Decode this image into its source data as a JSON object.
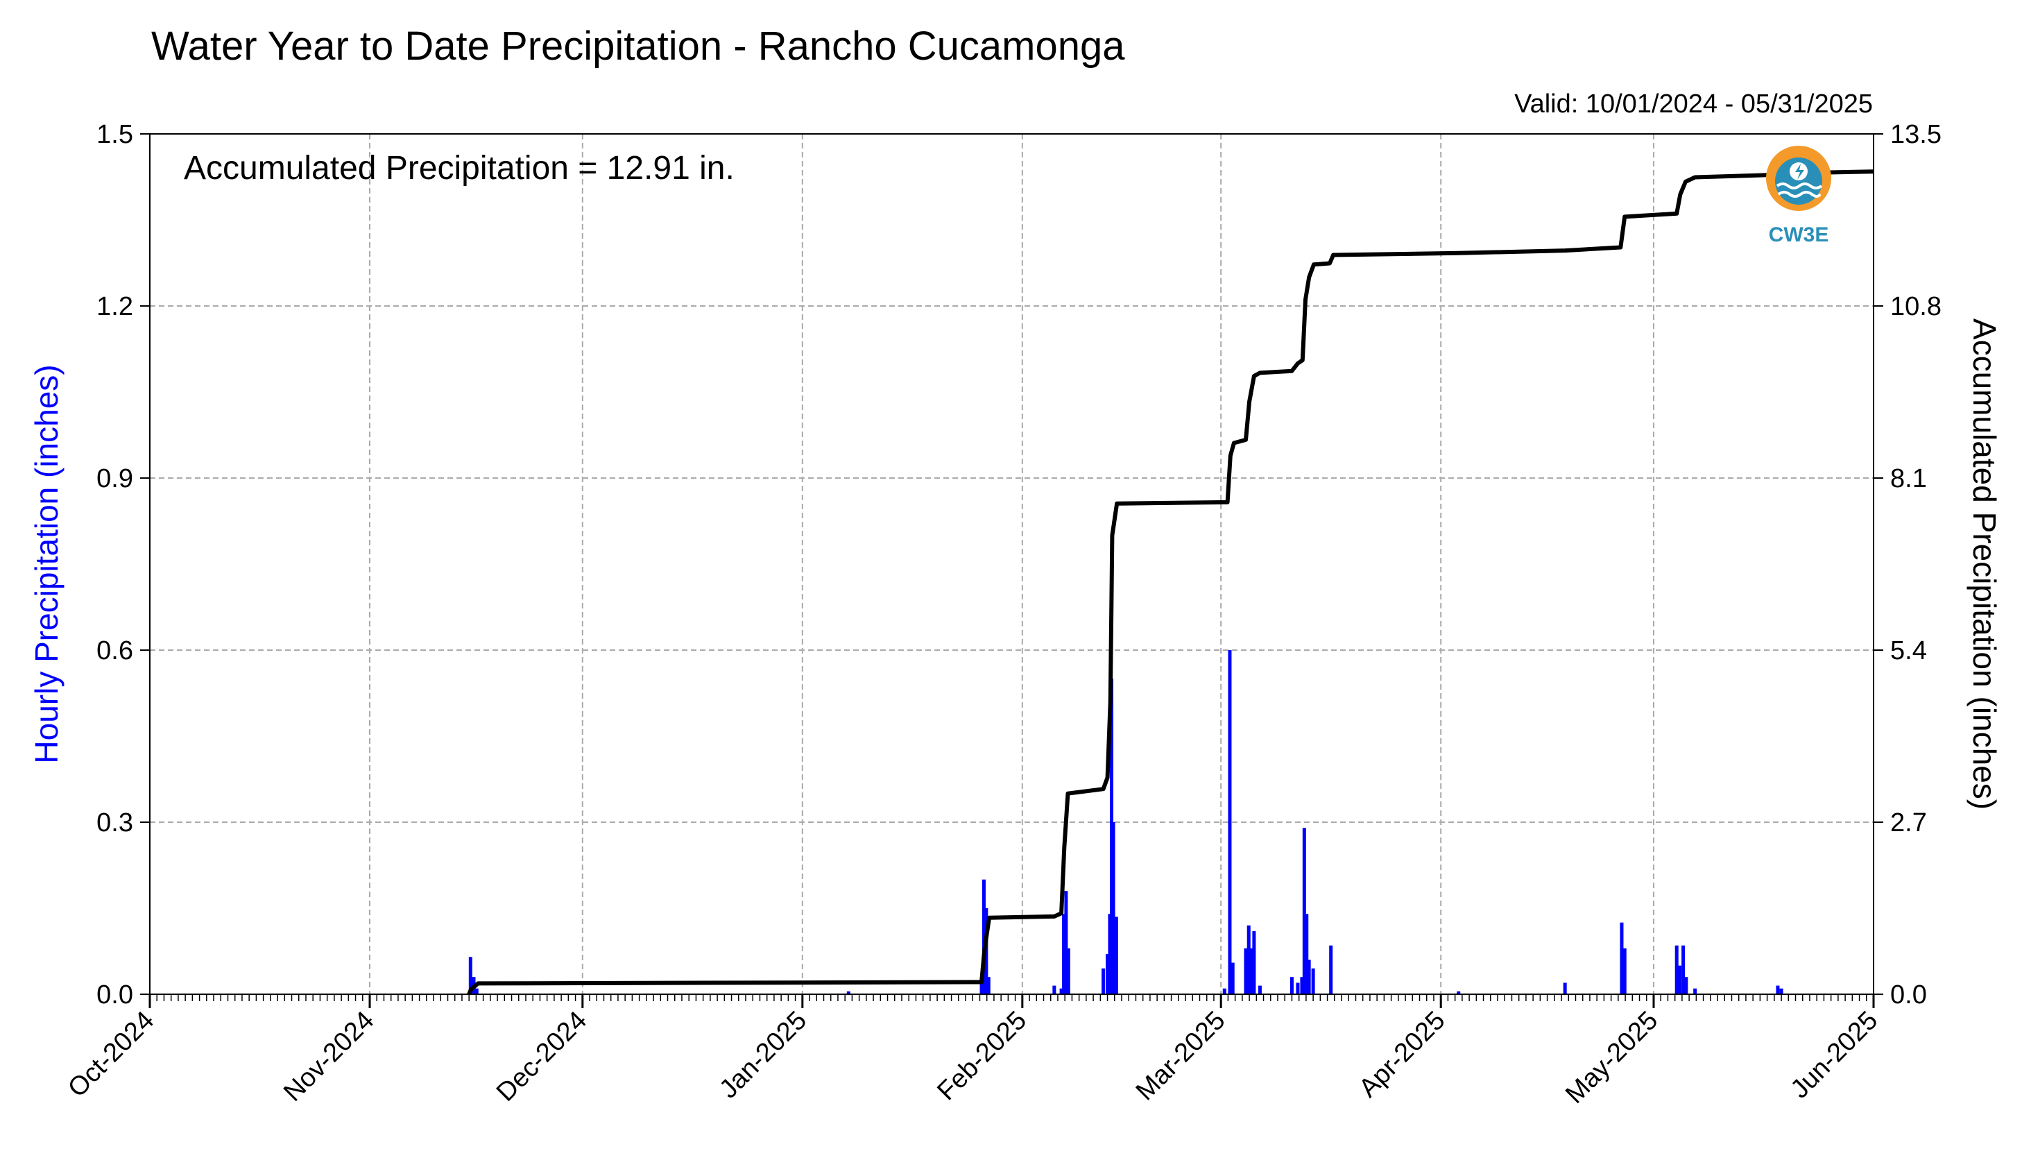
{
  "chart_data": {
    "type": "bar+line",
    "title": "Water Year to Date Precipitation - Rancho Cucamonga",
    "valid_text": "Valid: 10/01/2024 - 05/31/2025",
    "annotation": "Accumulated Precipitation = 12.91 in.",
    "logo_text": "CW3E",
    "ylabel_left": "Hourly Precipitation (inches)",
    "ylabel_right": "Accumulated Precipitation (inches)",
    "x_range": [
      "2024-10-01",
      "2025-06-01"
    ],
    "ylim_left": [
      0,
      1.5
    ],
    "ylim_right": [
      0,
      13.5
    ],
    "yticks_left": [
      "0.0",
      "0.3",
      "0.6",
      "0.9",
      "1.2",
      "1.5"
    ],
    "yticks_right": [
      "0.0",
      "2.7",
      "5.4",
      "8.1",
      "10.8",
      "13.5"
    ],
    "xticks": [
      {
        "label": "Oct-2024",
        "date": "2024-10-01"
      },
      {
        "label": "Nov-2024",
        "date": "2024-11-01"
      },
      {
        "label": "Dec-2024",
        "date": "2024-12-01"
      },
      {
        "label": "Jan-2025",
        "date": "2025-01-01"
      },
      {
        "label": "Feb-2025",
        "date": "2025-02-01"
      },
      {
        "label": "Mar-2025",
        "date": "2025-03-01"
      },
      {
        "label": "Apr-2025",
        "date": "2025-04-01"
      },
      {
        "label": "May-2025",
        "date": "2025-05-01"
      },
      {
        "label": "Jun-2025",
        "date": "2025-06-01"
      }
    ],
    "grid": true,
    "colors": {
      "hourly": "#0000ff",
      "accumulated": "#000000",
      "grid": "#aaaaaa"
    },
    "hourly_series": [
      {
        "date": "2024-11-15 05:00",
        "value": 0.065
      },
      {
        "date": "2024-11-15 16:00",
        "value": 0.03
      },
      {
        "date": "2024-11-16 02:00",
        "value": 0.01
      },
      {
        "date": "2025-01-07 12:00",
        "value": 0.005
      },
      {
        "date": "2025-01-26 06:00",
        "value": 0.03
      },
      {
        "date": "2025-01-26 14:00",
        "value": 0.2
      },
      {
        "date": "2025-01-26 22:00",
        "value": 0.15
      },
      {
        "date": "2025-01-27 06:00",
        "value": 0.03
      },
      {
        "date": "2025-02-05 12:00",
        "value": 0.015
      },
      {
        "date": "2025-02-06 12:00",
        "value": 0.01
      },
      {
        "date": "2025-02-06 20:00",
        "value": 0.14
      },
      {
        "date": "2025-02-07 04:00",
        "value": 0.18
      },
      {
        "date": "2025-02-07 12:00",
        "value": 0.08
      },
      {
        "date": "2025-02-12 10:00",
        "value": 0.045
      },
      {
        "date": "2025-02-13 00:00",
        "value": 0.07
      },
      {
        "date": "2025-02-13 08:00",
        "value": 0.14
      },
      {
        "date": "2025-02-13 14:00",
        "value": 0.55
      },
      {
        "date": "2025-02-13 20:00",
        "value": 0.3
      },
      {
        "date": "2025-02-14 06:00",
        "value": 0.135
      },
      {
        "date": "2025-03-01 12:00",
        "value": 0.01
      },
      {
        "date": "2025-03-02 06:00",
        "value": 0.6
      },
      {
        "date": "2025-03-02 16:00",
        "value": 0.055
      },
      {
        "date": "2025-03-04 12:00",
        "value": 0.08
      },
      {
        "date": "2025-03-04 22:00",
        "value": 0.12
      },
      {
        "date": "2025-03-05 08:00",
        "value": 0.08
      },
      {
        "date": "2025-03-05 16:00",
        "value": 0.11
      },
      {
        "date": "2025-03-06 12:00",
        "value": 0.015
      },
      {
        "date": "2025-03-11 00:00",
        "value": 0.03
      },
      {
        "date": "2025-03-11 20:00",
        "value": 0.02
      },
      {
        "date": "2025-03-12 10:00",
        "value": 0.03
      },
      {
        "date": "2025-03-12 18:00",
        "value": 0.29
      },
      {
        "date": "2025-03-13 02:00",
        "value": 0.14
      },
      {
        "date": "2025-03-13 10:00",
        "value": 0.06
      },
      {
        "date": "2025-03-14 00:00",
        "value": 0.045
      },
      {
        "date": "2025-03-16 12:00",
        "value": 0.085
      },
      {
        "date": "2025-04-03 12:00",
        "value": 0.005
      },
      {
        "date": "2025-04-18 12:00",
        "value": 0.02
      },
      {
        "date": "2025-04-26 12:00",
        "value": 0.125
      },
      {
        "date": "2025-04-26 22:00",
        "value": 0.08
      },
      {
        "date": "2025-05-04 06:00",
        "value": 0.085
      },
      {
        "date": "2025-05-04 16:00",
        "value": 0.05
      },
      {
        "date": "2025-05-05 04:00",
        "value": 0.085
      },
      {
        "date": "2025-05-05 14:00",
        "value": 0.03
      },
      {
        "date": "2025-05-06 20:00",
        "value": 0.01
      },
      {
        "date": "2025-05-18 12:00",
        "value": 0.015
      },
      {
        "date": "2025-05-19 00:00",
        "value": 0.01
      }
    ],
    "accumulated_series": [
      {
        "date": "2024-11-15 00:00",
        "value": 0.0
      },
      {
        "date": "2024-11-15 06:00",
        "value": 0.07
      },
      {
        "date": "2024-11-16 06:00",
        "value": 0.17
      },
      {
        "date": "2025-01-26 06:00",
        "value": 0.19
      },
      {
        "date": "2025-01-26 16:00",
        "value": 0.7
      },
      {
        "date": "2025-01-27 08:00",
        "value": 1.2
      },
      {
        "date": "2025-02-05 12:00",
        "value": 1.22
      },
      {
        "date": "2025-02-06 12:00",
        "value": 1.27
      },
      {
        "date": "2025-02-06 22:00",
        "value": 2.3
      },
      {
        "date": "2025-02-07 10:00",
        "value": 3.15
      },
      {
        "date": "2025-02-12 10:00",
        "value": 3.22
      },
      {
        "date": "2025-02-13 00:00",
        "value": 3.4
      },
      {
        "date": "2025-02-13 10:00",
        "value": 4.6
      },
      {
        "date": "2025-02-13 16:00",
        "value": 7.2
      },
      {
        "date": "2025-02-14 08:00",
        "value": 7.7
      },
      {
        "date": "2025-03-01 22:00",
        "value": 7.72
      },
      {
        "date": "2025-03-02 08:00",
        "value": 8.45
      },
      {
        "date": "2025-03-02 20:00",
        "value": 8.65
      },
      {
        "date": "2025-03-04 12:00",
        "value": 8.7
      },
      {
        "date": "2025-03-05 00:00",
        "value": 9.3
      },
      {
        "date": "2025-03-05 16:00",
        "value": 9.7
      },
      {
        "date": "2025-03-06 12:00",
        "value": 9.75
      },
      {
        "date": "2025-03-11 00:00",
        "value": 9.78
      },
      {
        "date": "2025-03-11 20:00",
        "value": 9.9
      },
      {
        "date": "2025-03-12 12:00",
        "value": 9.95
      },
      {
        "date": "2025-03-12 22:00",
        "value": 10.9
      },
      {
        "date": "2025-03-13 10:00",
        "value": 11.25
      },
      {
        "date": "2025-03-14 02:00",
        "value": 11.45
      },
      {
        "date": "2025-03-16 08:00",
        "value": 11.47
      },
      {
        "date": "2025-03-16 20:00",
        "value": 11.6
      },
      {
        "date": "2025-04-03 12:00",
        "value": 11.63
      },
      {
        "date": "2025-04-18 12:00",
        "value": 11.67
      },
      {
        "date": "2025-04-26 08:00",
        "value": 11.72
      },
      {
        "date": "2025-04-26 22:00",
        "value": 12.2
      },
      {
        "date": "2025-05-04 06:00",
        "value": 12.25
      },
      {
        "date": "2025-05-04 18:00",
        "value": 12.55
      },
      {
        "date": "2025-05-05 12:00",
        "value": 12.75
      },
      {
        "date": "2025-05-06 20:00",
        "value": 12.82
      },
      {
        "date": "2025-05-18 12:00",
        "value": 12.86
      },
      {
        "date": "2025-05-19 00:00",
        "value": 12.88
      },
      {
        "date": "2025-05-31 23:00",
        "value": 12.91
      }
    ]
  }
}
